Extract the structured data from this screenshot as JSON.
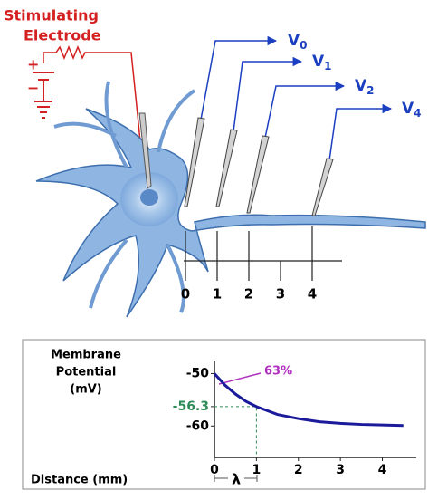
{
  "diagram": {
    "electrode_label": [
      "Stimulating",
      "Electrode"
    ],
    "battery_labels": [
      "+",
      "−"
    ],
    "recordings": [
      [
        "V",
        "0"
      ],
      [
        "V",
        "1"
      ],
      [
        "V",
        "2"
      ],
      [
        "V",
        "4"
      ]
    ],
    "ruler_labels": [
      "0",
      "1",
      "2",
      "3",
      "4"
    ]
  },
  "chart_data": {
    "type": "line",
    "y_label": [
      "Membrane",
      "Potential",
      "(mV)"
    ],
    "x_label": "Distance (mm)",
    "annotation": "63%",
    "lambda_label": "λ",
    "x": [
      0,
      0.25,
      0.5,
      0.75,
      1,
      1.5,
      2,
      2.5,
      3,
      3.5,
      4,
      4.5
    ],
    "series": [
      {
        "color": "#1a1a9a",
        "values": [
          -50,
          -52.2,
          -53.9,
          -55.3,
          -56.3,
          -57.8,
          -58.6,
          -59.2,
          -59.5,
          -59.7,
          -59.8,
          -59.9
        ]
      }
    ],
    "xlim": [
      0,
      4.7
    ],
    "ylim": [
      -66,
      -47.5
    ],
    "xticks": [
      0,
      1,
      2,
      3,
      4
    ],
    "yticks": [
      -50,
      -56.3,
      -60
    ],
    "ytick_colors": [
      "#000000",
      "#2e8b57",
      "#000000"
    ]
  }
}
